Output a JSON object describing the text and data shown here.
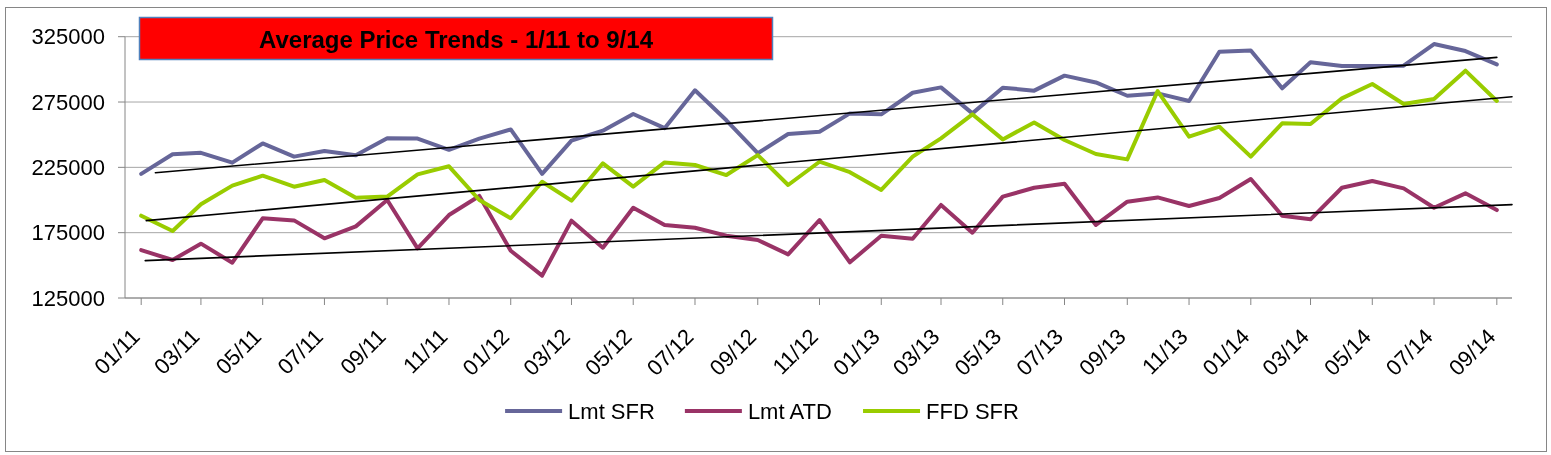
{
  "chart_data": {
    "type": "line",
    "title": "Average Price Trends - 1/11 to 9/14",
    "x": [
      "2011-01",
      "2011-02",
      "2011-03",
      "2011-04",
      "2011-05",
      "2011-06",
      "2011-07",
      "2011-08",
      "2011-09",
      "2011-10",
      "2011-11",
      "2011-12",
      "2012-01",
      "2012-02",
      "2012-03",
      "2012-04",
      "2012-05",
      "2012-06",
      "2012-07",
      "2012-08",
      "2012-09",
      "2012-10",
      "2012-11",
      "2012-12",
      "2013-01",
      "2013-02",
      "2013-03",
      "2013-04",
      "2013-05",
      "2013-06",
      "2013-07",
      "2013-08",
      "2013-09",
      "2013-10",
      "2013-11",
      "2013-12",
      "2014-01",
      "2014-02",
      "2014-03",
      "2014-04",
      "2014-05",
      "2014-06",
      "2014-07",
      "2014-08",
      "2014-09"
    ],
    "xlim": [
      "2010-12-16",
      "2014-09-16"
    ],
    "xticks": [
      {
        "value": "2011-01",
        "label": "01/11"
      },
      {
        "value": "2011-03",
        "label": "03/11"
      },
      {
        "value": "2011-05",
        "label": "05/11"
      },
      {
        "value": "2011-07",
        "label": "07/11"
      },
      {
        "value": "2011-09",
        "label": "09/11"
      },
      {
        "value": "2011-11",
        "label": "11/11"
      },
      {
        "value": "2012-01",
        "label": "01/12"
      },
      {
        "value": "2012-03",
        "label": "03/12"
      },
      {
        "value": "2012-05",
        "label": "05/12"
      },
      {
        "value": "2012-07",
        "label": "07/12"
      },
      {
        "value": "2012-09",
        "label": "09/12"
      },
      {
        "value": "2012-11",
        "label": "11/12"
      },
      {
        "value": "2013-01",
        "label": "01/13"
      },
      {
        "value": "2013-03",
        "label": "03/13"
      },
      {
        "value": "2013-05",
        "label": "05/13"
      },
      {
        "value": "2013-07",
        "label": "07/13"
      },
      {
        "value": "2013-09",
        "label": "09/13"
      },
      {
        "value": "2013-11",
        "label": "11/13"
      },
      {
        "value": "2014-01",
        "label": "01/14"
      },
      {
        "value": "2014-03",
        "label": "03/14"
      },
      {
        "value": "2014-05",
        "label": "05/14"
      },
      {
        "value": "2014-07",
        "label": "07/14"
      },
      {
        "value": "2014-09",
        "label": "09/14"
      }
    ],
    "ylim": [
      125000,
      325000
    ],
    "yticks": [
      125000,
      175000,
      225000,
      275000,
      325000
    ],
    "grid": "y",
    "legend": "bottom",
    "series": [
      {
        "name": "Lmt SFR",
        "color": "#666699",
        "values": [
          220000,
          235000,
          236100,
          228600,
          243300,
          233200,
          237500,
          234300,
          247300,
          247000,
          238400,
          247000,
          254000,
          220000,
          245500,
          253100,
          265800,
          255000,
          284000,
          261000,
          235800,
          250500,
          252300,
          266300,
          265600,
          282100,
          286200,
          266300,
          286000,
          283700,
          295200,
          290000,
          279800,
          281600,
          275800,
          313500,
          314500,
          285500,
          305400,
          302500,
          302500,
          302800,
          319400,
          314000,
          303800
        ]
      },
      {
        "name": "Lmt ATD",
        "color": "#993366",
        "values": [
          161700,
          154100,
          166600,
          152000,
          186000,
          184400,
          170700,
          179800,
          200000,
          163000,
          188500,
          203100,
          161200,
          142100,
          184200,
          163500,
          194100,
          180900,
          178800,
          172700,
          169400,
          158400,
          184700,
          152300,
          172700,
          170400,
          196200,
          175000,
          202600,
          209400,
          212500,
          180900,
          198700,
          202000,
          195400,
          201500,
          216100,
          188000,
          185200,
          209400,
          214500,
          208900,
          194100,
          205100,
          192300
        ]
      },
      {
        "name": "FFD SFR",
        "color": "#99cc00",
        "values": [
          188000,
          176300,
          196700,
          211000,
          218600,
          210200,
          215300,
          201800,
          202600,
          219600,
          225800,
          200000,
          186000,
          214000,
          199500,
          228100,
          210200,
          228800,
          226800,
          219100,
          234400,
          211500,
          229300,
          221300,
          207700,
          233200,
          247200,
          265600,
          246400,
          259400,
          245900,
          235200,
          231100,
          283400,
          248500,
          256100,
          233200,
          258700,
          258200,
          277800,
          288800,
          273500,
          277300,
          299000,
          275800
        ]
      },
      {
        "type": "line",
        "color": "#000000",
        "x": [
          "2011-01-15",
          "2014-09-01"
        ],
        "values": [
          220900,
          309200
        ]
      },
      {
        "type": "line",
        "color": "#000000",
        "x": [
          "2011-01-06",
          "2014-09-16"
        ],
        "values": [
          184200,
          279000
        ]
      },
      {
        "type": "line",
        "color": "#000000",
        "x": [
          "2011-01-05",
          "2014-09-16"
        ],
        "values": [
          153600,
          196500
        ]
      }
    ]
  }
}
